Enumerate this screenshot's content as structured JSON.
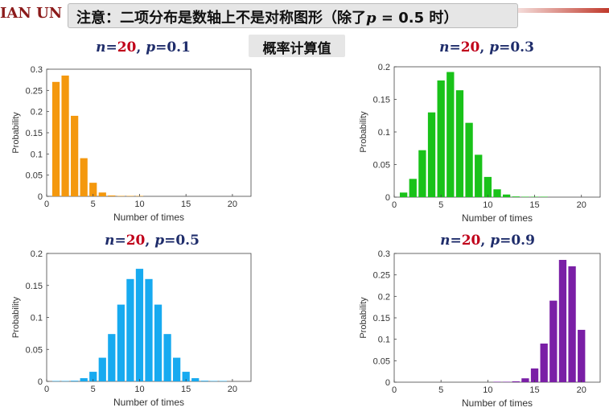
{
  "header": {
    "university_fragment": "IAN UN",
    "note_before": "注意：二项分布是数轴上不是对称图形（除了",
    "note_var": "p",
    "note_after": " = 0.5 时）"
  },
  "subtitle": "概率计算值",
  "colors": {
    "title_var": "#1f2d6b",
    "title_n": "#c0001a",
    "axis": "#444444"
  },
  "chart_data": [
    {
      "type": "bar",
      "title": {
        "n_label": "n",
        "eq1": "=",
        "n_value": "20",
        "sep": ", ",
        "p_label": "p",
        "p_rest": "=0.1"
      },
      "color": "#f4980e",
      "xlabel": "Number of times",
      "ylabel": "Probability",
      "xlim": [
        0,
        22
      ],
      "ylim": [
        0,
        0.3
      ],
      "xticks": [
        0,
        5,
        10,
        15,
        20
      ],
      "yticks": [
        0,
        0.05,
        0.1,
        0.15,
        0.2,
        0.25,
        0.3
      ],
      "ytick_labels": [
        "0",
        "0.05",
        "0.1",
        "0.15",
        "0.2",
        "0.25",
        "0.3"
      ],
      "x": [
        1,
        2,
        3,
        4,
        5,
        6,
        7,
        8,
        9,
        10
      ],
      "values": [
        0.27,
        0.285,
        0.19,
        0.09,
        0.032,
        0.009,
        0.002,
        0.0004,
        0.0001,
        0.0001
      ]
    },
    {
      "type": "bar",
      "title": {
        "n_label": "n",
        "eq1": "=",
        "n_value": "20",
        "sep": ", ",
        "p_label": "p",
        "p_rest": "=0.3"
      },
      "color": "#19c219",
      "xlabel": "Number of times",
      "ylabel": "Probability",
      "xlim": [
        0,
        22
      ],
      "ylim": [
        0,
        0.2
      ],
      "xticks": [
        0,
        5,
        10,
        15,
        20
      ],
      "yticks": [
        0,
        0.05,
        0.1,
        0.15,
        0.2
      ],
      "ytick_labels": [
        "0",
        "0.05",
        "0.1",
        "0.15",
        "0.2"
      ],
      "x": [
        1,
        2,
        3,
        4,
        5,
        6,
        7,
        8,
        9,
        10,
        11,
        12,
        13,
        14,
        15,
        16
      ],
      "values": [
        0.007,
        0.028,
        0.072,
        0.13,
        0.179,
        0.192,
        0.164,
        0.114,
        0.065,
        0.031,
        0.012,
        0.004,
        0.001,
        0.0003,
        0.0001,
        0.0001
      ]
    },
    {
      "type": "bar",
      "title": {
        "n_label": "n",
        "eq1": "=",
        "n_value": "20",
        "sep": ", ",
        "p_label": "p",
        "p_rest": "=0.5"
      },
      "color": "#17aaf0",
      "xlabel": "Number of times",
      "ylabel": "Probability",
      "xlim": [
        0,
        22
      ],
      "ylim": [
        0,
        0.2
      ],
      "xticks": [
        0,
        5,
        10,
        15,
        20
      ],
      "yticks": [
        0,
        0.05,
        0.1,
        0.15,
        0.2
      ],
      "ytick_labels": [
        "0",
        "0.05",
        "0.1",
        "0.15",
        "0.2"
      ],
      "x": [
        1,
        2,
        3,
        4,
        5,
        6,
        7,
        8,
        9,
        10,
        11,
        12,
        13,
        14,
        15,
        16,
        17,
        18,
        19
      ],
      "values": [
        0.0001,
        0.0002,
        0.001,
        0.005,
        0.015,
        0.037,
        0.074,
        0.12,
        0.16,
        0.176,
        0.16,
        0.12,
        0.074,
        0.037,
        0.015,
        0.005,
        0.001,
        0.0002,
        0.0001
      ]
    },
    {
      "type": "bar",
      "title": {
        "n_label": "n",
        "eq1": "=",
        "n_value": "20",
        "sep": ", ",
        "p_label": "p",
        "p_rest": "=0.9"
      },
      "color": "#7a1fa6",
      "xlabel": "Number of times",
      "ylabel": "Probability",
      "xlim": [
        0,
        22
      ],
      "ylim": [
        0,
        0.3
      ],
      "xticks": [
        0,
        5,
        10,
        15,
        20
      ],
      "yticks": [
        0,
        0.05,
        0.1,
        0.15,
        0.2,
        0.25,
        0.3
      ],
      "ytick_labels": [
        "0",
        "0.05",
        "0.1",
        "0.15",
        "0.2",
        "0.25",
        "0.3"
      ],
      "x": [
        11,
        12,
        13,
        14,
        15,
        16,
        17,
        18,
        19,
        20
      ],
      "values": [
        0.0001,
        0.0004,
        0.002,
        0.009,
        0.032,
        0.09,
        0.19,
        0.285,
        0.27,
        0.122
      ]
    }
  ]
}
